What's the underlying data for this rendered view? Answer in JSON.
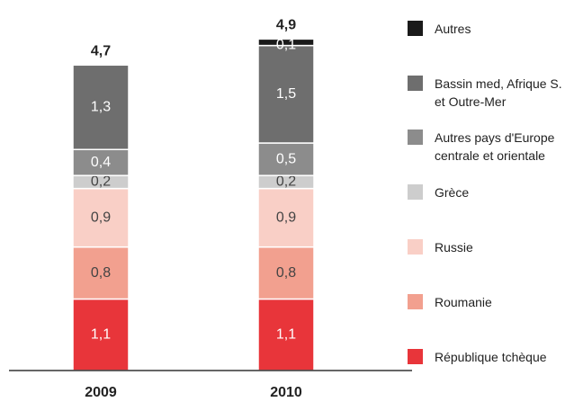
{
  "chart_data": {
    "type": "stacked_bar",
    "categories": [
      "2009",
      "2010"
    ],
    "series": [
      {
        "name": "République tchèque",
        "color": "#e8353a",
        "values": [
          1.1,
          1.1
        ],
        "value_labels": [
          "1,1",
          "1,1"
        ]
      },
      {
        "name": "Roumanie",
        "color": "#f2a08f",
        "values": [
          0.8,
          0.8
        ],
        "value_labels": [
          "0,8",
          "0,8"
        ]
      },
      {
        "name": "Russie",
        "color": "#f9cfc6",
        "values": [
          0.9,
          0.9
        ],
        "value_labels": [
          "0,9",
          "0,9"
        ]
      },
      {
        "name": "Grèce",
        "color": "#cdcdcd",
        "values": [
          0.2,
          0.2
        ],
        "value_labels": [
          "0,2",
          "0,2"
        ]
      },
      {
        "name": "Autres pays d'Europe\ncentrale et orientale",
        "color": "#8c8c8c",
        "values": [
          0.4,
          0.5
        ],
        "value_labels": [
          "0,4",
          "0,5"
        ]
      },
      {
        "name": "Bassin med, Afrique S.\net Outre-Mer",
        "color": "#6e6e6e",
        "values": [
          1.3,
          1.5
        ],
        "value_labels": [
          "1,3",
          "1,5"
        ]
      },
      {
        "name": "Autres",
        "color": "#1a1a1a",
        "values": [
          null,
          0.1
        ],
        "value_labels": [
          null,
          "0,1"
        ]
      }
    ],
    "totals": [
      4.7,
      4.9
    ],
    "total_labels": [
      "4,7",
      "4,9"
    ],
    "ylim": [
      0,
      5.7
    ],
    "legend": "right"
  }
}
